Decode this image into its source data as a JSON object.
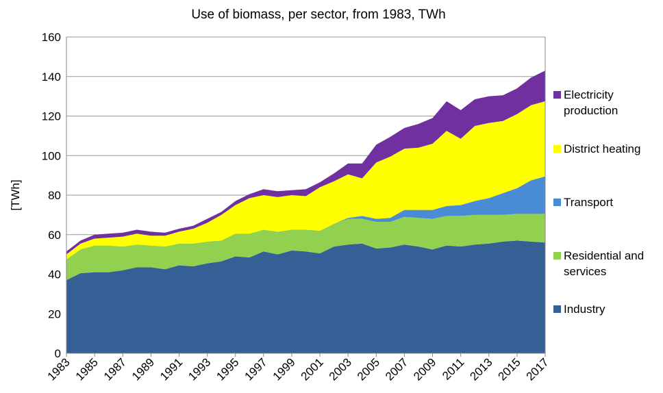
{
  "chart_data": {
    "type": "stacked-area",
    "title": "Use of biomass, per sector, from 1983, TWh",
    "y_label": "[TWh]",
    "x": [
      1983,
      1984,
      1985,
      1986,
      1987,
      1988,
      1989,
      1990,
      1991,
      1992,
      1993,
      1994,
      1995,
      1996,
      1997,
      1998,
      1999,
      2000,
      2001,
      2002,
      2003,
      2004,
      2005,
      2006,
      2007,
      2008,
      2009,
      2010,
      2011,
      2012,
      2013,
      2014,
      2015,
      2016,
      2017
    ],
    "xlim": [
      1983,
      2017
    ],
    "xticks": [
      1983,
      1985,
      1987,
      1989,
      1991,
      1993,
      1995,
      1997,
      1999,
      2001,
      2003,
      2005,
      2007,
      2009,
      2011,
      2013,
      2015,
      2017
    ],
    "ylim": [
      0,
      160
    ],
    "yticks": [
      0,
      20,
      40,
      60,
      80,
      100,
      120,
      140,
      160
    ],
    "grid": true,
    "legend": "right",
    "series": [
      {
        "name": "Industry",
        "color": "#365f96",
        "values": [
          37,
          40.5,
          41,
          41,
          42,
          43.5,
          43.5,
          42.5,
          44.5,
          44,
          45.5,
          46.5,
          49,
          48.5,
          51.5,
          50,
          52,
          51.5,
          50.5,
          54,
          55,
          55.5,
          53,
          53.5,
          55,
          54,
          52.5,
          54.5,
          54,
          55,
          55.5,
          56.5,
          57,
          56.5,
          56
        ]
      },
      {
        "name": "Residential and services",
        "color": "#92d050",
        "values": [
          10.5,
          12,
          13.5,
          13.5,
          12,
          11.5,
          11,
          11.5,
          11,
          11.5,
          11,
          10.5,
          11.5,
          12,
          11,
          11.5,
          10.5,
          11,
          11.5,
          11.5,
          13,
          12.5,
          13.5,
          13,
          14,
          14.5,
          15.5,
          15,
          15.5,
          15,
          14.5,
          13.5,
          13.5,
          14,
          14.5
        ]
      },
      {
        "name": "Transport",
        "color": "#4a8bd6",
        "values": [
          0,
          0,
          0,
          0,
          0,
          0,
          0,
          0,
          0,
          0,
          0,
          0,
          0,
          0,
          0,
          0,
          0,
          0,
          0,
          0,
          0.5,
          1.5,
          1.5,
          2,
          3.5,
          4,
          4.5,
          5,
          5.5,
          7,
          8.5,
          11,
          13,
          17,
          19
        ]
      },
      {
        "name": "District heating",
        "color": "#ffff00",
        "values": [
          2.5,
          3,
          3.5,
          4,
          5,
          5.5,
          5,
          5.5,
          6,
          7.5,
          9.5,
          13,
          14.5,
          18,
          17.5,
          17.5,
          17.5,
          17,
          22,
          21.5,
          22,
          19,
          28.5,
          31,
          31,
          31.5,
          33.5,
          38,
          33.5,
          38,
          38,
          36.5,
          37.5,
          38,
          38
        ]
      },
      {
        "name": "Electricity production",
        "color": "#7030a0",
        "values": [
          1.5,
          1.5,
          2,
          2,
          2,
          2,
          2,
          1.5,
          1.5,
          1.5,
          2,
          1.5,
          2,
          2,
          3,
          3,
          2.5,
          3.5,
          2.5,
          4,
          5.5,
          7.5,
          9,
          10,
          10.5,
          12,
          13,
          15,
          14.5,
          13.5,
          13.5,
          13,
          13,
          14,
          15.5
        ]
      }
    ]
  }
}
